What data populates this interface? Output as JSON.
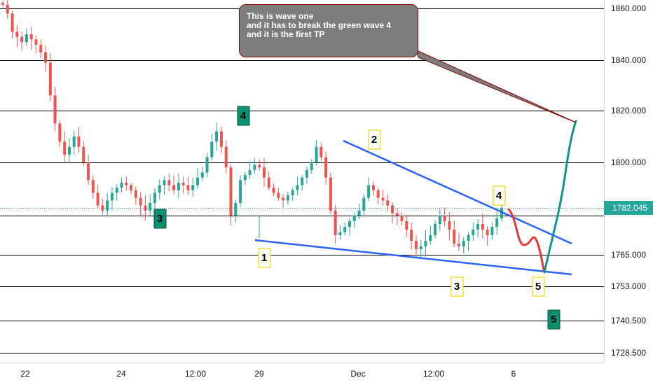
{
  "chart_data": {
    "type": "candlestick",
    "symbol_price_label": "1782.045",
    "current_price": 1782.045,
    "ylim": [
      1724,
      1866
    ],
    "y_ticks": [
      "1860.000",
      "1840.000",
      "1820.000",
      "1800.000",
      "1782.045",
      "1765.000",
      "1753.000",
      "1740.500",
      "1728.500"
    ],
    "horizontal_levels": [
      1860,
      1840,
      1820,
      1800,
      1779,
      1765,
      1753,
      1740.5,
      1728.5
    ],
    "x_ticks": [
      "22",
      "24",
      "12:00",
      "29",
      "Dec",
      "12:00",
      "6"
    ],
    "candles_close_path": [
      1862,
      1858,
      1851,
      1849,
      1847,
      1850,
      1848,
      1846,
      1843,
      1839,
      1826,
      1815,
      1808,
      1803,
      1806,
      1810,
      1806,
      1800,
      1793,
      1788,
      1783,
      1781,
      1785,
      1788,
      1790,
      1792,
      1791,
      1789,
      1786,
      1783,
      1781,
      1784,
      1788,
      1791,
      1793,
      1791,
      1789,
      1792,
      1791,
      1789,
      1791,
      1794,
      1796,
      1802,
      1808,
      1812,
      1806,
      1798,
      1779,
      1784,
      1793,
      1795,
      1797,
      1799,
      1798,
      1794,
      1790,
      1788,
      1786,
      1785,
      1787,
      1789,
      1791,
      1794,
      1797,
      1800,
      1806,
      1802,
      1794,
      1781,
      1772,
      1773,
      1775,
      1777,
      1779,
      1781,
      1786,
      1791,
      1789,
      1786,
      1785,
      1783,
      1780,
      1779,
      1777,
      1774,
      1770,
      1767,
      1768,
      1770,
      1772,
      1776,
      1779,
      1777,
      1774,
      1769,
      1768,
      1770,
      1772,
      1774,
      1776,
      1774,
      1772,
      1775,
      1778,
      1782
    ],
    "wave_labels": [
      {
        "text": "4",
        "style": "green",
        "x_data": 347,
        "y": 1818
      },
      {
        "text": "3",
        "style": "green",
        "x_data": 228,
        "y": 1778
      },
      {
        "text": "1",
        "style": "yellow",
        "x_data": 377,
        "y": 1764
      },
      {
        "text": "2",
        "style": "yellow",
        "x_data": 534,
        "y": 1809
      },
      {
        "text": "3",
        "style": "yellow",
        "x_data": 652,
        "y": 1753
      },
      {
        "text": "4",
        "style": "yellow",
        "x_data": 712,
        "y": 1787
      },
      {
        "text": "5",
        "style": "yellow",
        "x_data": 768,
        "y": 1753
      },
      {
        "text": "5",
        "style": "green",
        "x_data": 790,
        "y": 1741
      }
    ],
    "note_lines": [
      "This is wave one",
      "and it has to break the green wave 4",
      "and it is the first TP"
    ],
    "colors": {
      "up": "#26a69a",
      "down": "#ef5350",
      "trendline": "#2962ff",
      "projection_up": "#0f9688",
      "projection_down": "#e53935",
      "label_green_bg": "#0a8f6f",
      "label_yellow_border": "#f2d600",
      "price_label_bg": "#26a69a"
    }
  }
}
